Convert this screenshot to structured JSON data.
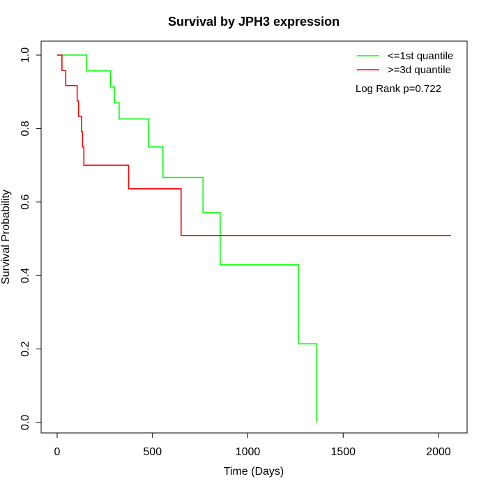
{
  "chart_data": {
    "type": "line",
    "subtype": "kaplan-meier-step",
    "title": "Survival by JPH3 expression",
    "xlabel": "Time (Days)",
    "ylabel": "Survival Probability",
    "xlim": [
      0,
      2070
    ],
    "ylim": [
      0,
      1
    ],
    "xticks": [
      0,
      500,
      1000,
      1500,
      2000
    ],
    "yticks": [
      0.0,
      0.2,
      0.4,
      0.6,
      0.8,
      1.0
    ],
    "xtick_labels": [
      "0",
      "500",
      "1000",
      "1500",
      "2000"
    ],
    "ytick_labels": [
      "0.0",
      "0.2",
      "0.4",
      "0.6",
      "0.8",
      "1.0"
    ],
    "grid": false,
    "legend_position": "top-right",
    "annotation": "Log Rank p=0.722",
    "series": [
      {
        "name": "<=1st quantile",
        "color": "#00ff00",
        "steps": [
          [
            0,
            1.0
          ],
          [
            155,
            0.957
          ],
          [
            280,
            0.913
          ],
          [
            300,
            0.87
          ],
          [
            325,
            0.826
          ],
          [
            480,
            0.75
          ],
          [
            555,
            0.667
          ],
          [
            765,
            0.571
          ],
          [
            855,
            0.429
          ],
          [
            1265,
            0.214
          ],
          [
            1362,
            0.0
          ]
        ],
        "end_x": 1362
      },
      {
        "name": ">=3d quantile",
        "color": "#ff0000",
        "steps": [
          [
            0,
            1.0
          ],
          [
            25,
            0.958
          ],
          [
            45,
            0.917
          ],
          [
            105,
            0.875
          ],
          [
            112,
            0.833
          ],
          [
            128,
            0.792
          ],
          [
            133,
            0.75
          ],
          [
            140,
            0.7
          ],
          [
            375,
            0.636
          ],
          [
            650,
            0.509
          ]
        ],
        "end_x": 2065
      }
    ]
  }
}
